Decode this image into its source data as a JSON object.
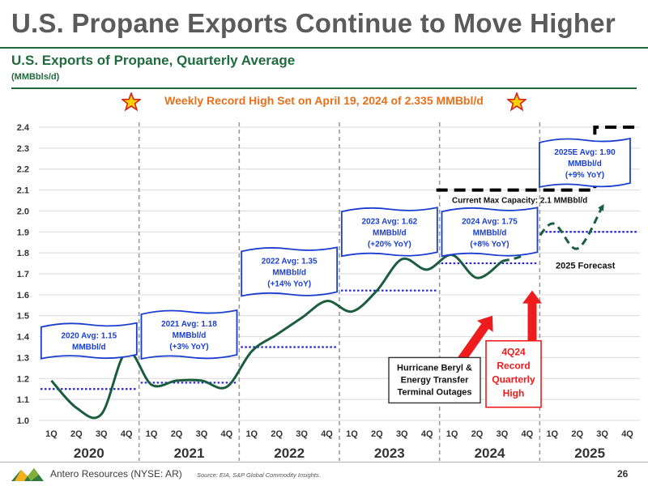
{
  "title": "U.S. Propane Exports Continue to Move Higher",
  "subtitle": "U.S. Exports of Propane, Quarterly Average",
  "units": "(MMBbls/d)",
  "record_banner": "Weekly Record High Set on April 19, 2024 of 2.335 MMBbl/d",
  "footer": {
    "company": "Antero Resources (NYSE: AR)",
    "source": "Source: EIA, S&P Global Commodity Insights.",
    "page": "26"
  },
  "colors": {
    "actual_line": "#1b5e3f",
    "forecast_line": "#1b5e3f",
    "average_line": "#2323d9",
    "callout_border": "#1a3fcf",
    "capacity_line": "#000000",
    "arrow": "#ee1c1c",
    "record_text": "#e8701a",
    "brand_green": "#1f6b3e"
  },
  "chart_data": {
    "type": "line",
    "ylim": [
      1.0,
      2.4
    ],
    "y_ticks": [
      "1.0",
      "1.1",
      "1.2",
      "1.3",
      "1.4",
      "1.5",
      "1.6",
      "1.7",
      "1.8",
      "1.9",
      "2.0",
      "2.1",
      "2.2",
      "2.3",
      "2.4"
    ],
    "grid": "horizontal",
    "quarter_labels": [
      "1Q",
      "2Q",
      "3Q",
      "4Q"
    ],
    "years": [
      "2020",
      "2021",
      "2022",
      "2023",
      "2024",
      "2025"
    ],
    "series": [
      {
        "style": "solid",
        "values": [
          1.19,
          1.06,
          1.03,
          1.33,
          1.17,
          1.19,
          1.19,
          1.16,
          1.33,
          1.41,
          1.49,
          1.57,
          1.52,
          1.62,
          1.77,
          1.72,
          1.79,
          1.68,
          1.76,
          null,
          null,
          null,
          null,
          null
        ]
      },
      {
        "style": "dashed",
        "values": [
          null,
          null,
          null,
          null,
          null,
          null,
          null,
          null,
          null,
          null,
          null,
          null,
          null,
          null,
          null,
          null,
          null,
          null,
          1.76,
          1.8,
          1.94,
          1.82,
          2.02,
          null
        ]
      }
    ],
    "annual_averages": [
      {
        "year": "2020",
        "value": 1.15,
        "label": [
          "2020 Avg: 1.15",
          "MMBbl/d"
        ]
      },
      {
        "year": "2021",
        "value": 1.18,
        "label": [
          "2021 Avg: 1.18",
          "MMBbl/d",
          "(+3% YoY)"
        ]
      },
      {
        "year": "2022",
        "value": 1.35,
        "label": [
          "2022 Avg: 1.35",
          "MMBbl/d",
          "(+14% YoY)"
        ]
      },
      {
        "year": "2023",
        "value": 1.62,
        "label": [
          "2023 Avg: 1.62",
          "MMBbl/d",
          "(+20% YoY)"
        ]
      },
      {
        "year": "2024",
        "value": 1.75,
        "label": [
          "2024 Avg: 1.75",
          "MMBbl/d",
          "(+8% YoY)"
        ]
      },
      {
        "year": "2025",
        "value": 1.9,
        "label": [
          "2025E Avg: 1.90",
          "MMBbl/d",
          "(+9% YoY)"
        ]
      }
    ],
    "capacity": {
      "label": "Current Max Capacity: 2.1 MMBbl/d",
      "value": 2.1,
      "expanded_value": 2.4
    },
    "forecast_label": "2025 Forecast",
    "annotations": [
      {
        "id": "hurricane",
        "text": [
          "Hurricane Beryl &",
          "Energy Transfer",
          "Terminal Outages"
        ]
      },
      {
        "id": "record_quarter",
        "text": [
          "4Q24",
          "Record",
          "Quarterly",
          "High"
        ]
      }
    ]
  }
}
